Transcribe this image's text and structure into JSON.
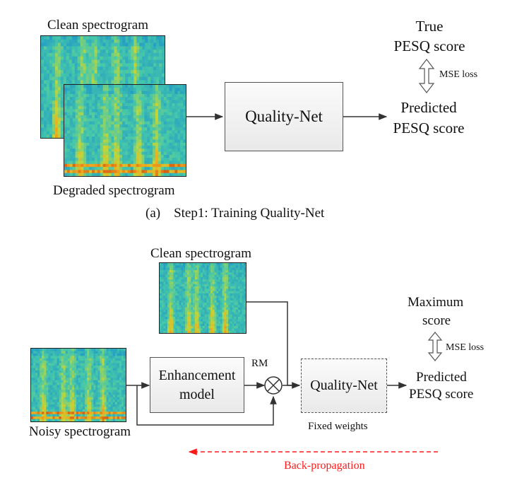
{
  "step1": {
    "clean_label": "Clean spectrogram",
    "degraded_label": "Degraded spectrogram",
    "quality_net_label": "Quality-Net",
    "true_score_line1": "True",
    "true_score_line2": "PESQ score",
    "mse_label": "MSE loss",
    "predicted_line1": "Predicted",
    "predicted_line2": "PESQ score",
    "caption": "(a)    Step1: Training Quality-Net"
  },
  "step2": {
    "clean_label": "Clean spectrogram",
    "noisy_label": "Noisy spectrogram",
    "enhancement_line1": "Enhancement",
    "enhancement_line2": "model",
    "rm_label": "RM",
    "quality_net_label": "Quality-Net",
    "fixed_weights_label": "Fixed weights",
    "max_score_line1": "Maximum",
    "max_score_line2": "score",
    "mse_label": "MSE loss",
    "predicted_line1": "Predicted",
    "predicted_line2": "PESQ score",
    "backprop_label": "Back-propagation"
  },
  "colors": {
    "line": "#333333",
    "backprop": "#ff1a1a",
    "spec_bg": "#2aa0b0",
    "spec_warm": "#e0701a"
  }
}
